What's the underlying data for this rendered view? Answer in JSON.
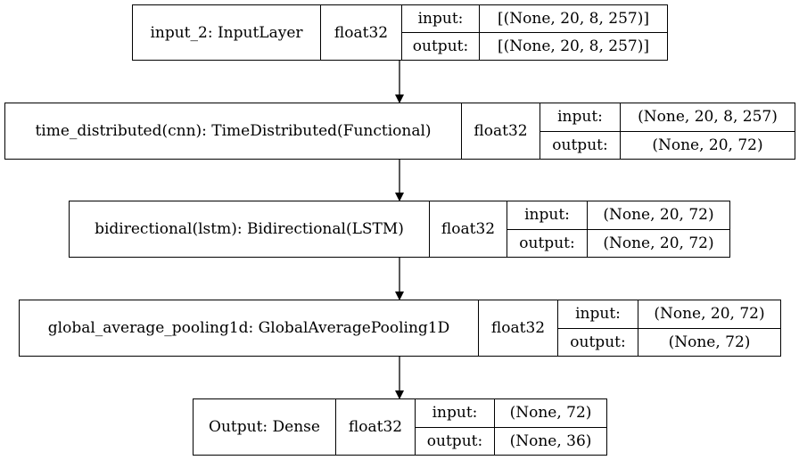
{
  "nodes": [
    {
      "name": "input_2: InputLayer",
      "dtype": "float32",
      "input_label": "input:",
      "output_label": "output:",
      "input_shape": "[(None, 20, 8, 257)]",
      "output_shape": "[(None, 20, 8, 257)]"
    },
    {
      "name": "time_distributed(cnn): TimeDistributed(Functional)",
      "dtype": "float32",
      "input_label": "input:",
      "output_label": "output:",
      "input_shape": "(None, 20, 8, 257)",
      "output_shape": "(None, 20, 72)"
    },
    {
      "name": "bidirectional(lstm): Bidirectional(LSTM)",
      "dtype": "float32",
      "input_label": "input:",
      "output_label": "output:",
      "input_shape": "(None, 20, 72)",
      "output_shape": "(None, 20, 72)"
    },
    {
      "name": "global_average_pooling1d: GlobalAveragePooling1D",
      "dtype": "float32",
      "input_label": "input:",
      "output_label": "output:",
      "input_shape": "(None, 20, 72)",
      "output_shape": "(None, 72)"
    },
    {
      "name": "Output: Dense",
      "dtype": "float32",
      "input_label": "input:",
      "output_label": "output:",
      "input_shape": "(None, 72)",
      "output_shape": "(None, 36)"
    }
  ],
  "edge_color": "#000000"
}
